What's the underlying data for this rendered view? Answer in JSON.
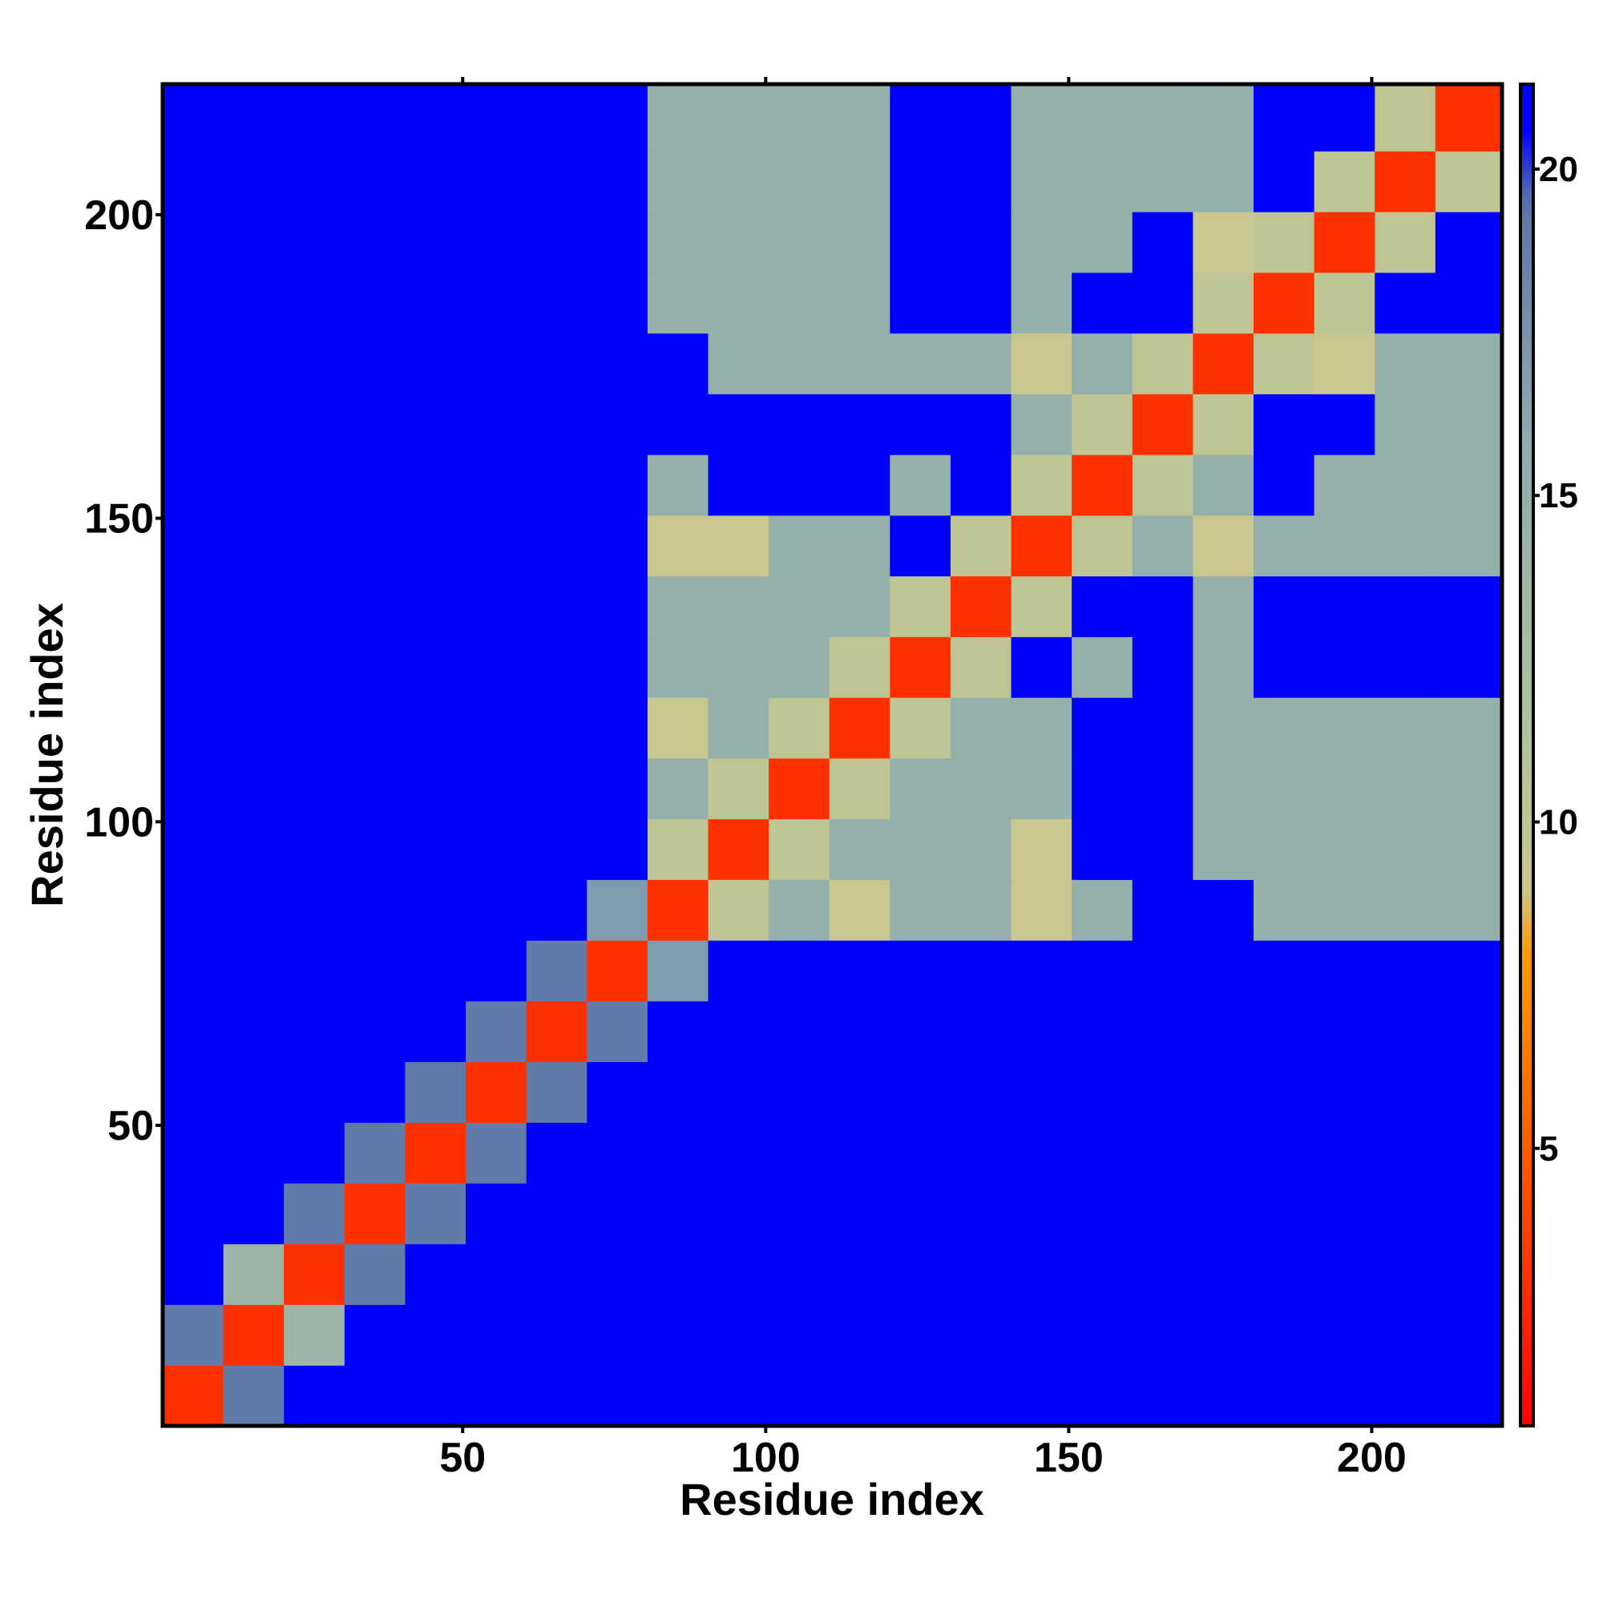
{
  "chart_data": {
    "type": "heatmap",
    "xlabel": "Residue index",
    "ylabel": "Residue index",
    "xbins": [
      0.5,
      10.5,
      20.5,
      30.5,
      40.5,
      50.5,
      60.5,
      70.5,
      80.5,
      90.5,
      100.5,
      110.5,
      120.5,
      130.5,
      140.5,
      150.5,
      160.5,
      170.5,
      180.5,
      190.5,
      200.5,
      210.5,
      221.5
    ],
    "ybins": [
      0.5,
      10.5,
      20.5,
      30.5,
      40.5,
      50.5,
      60.5,
      70.5,
      80.5,
      90.5,
      100.5,
      110.5,
      120.5,
      130.5,
      140.5,
      150.5,
      160.5,
      170.5,
      180.5,
      190.5,
      200.5,
      210.5,
      221.5
    ],
    "xlim": [
      0.5,
      221.5
    ],
    "ylim": [
      0.5,
      221.5
    ],
    "xticks": [
      50,
      100,
      150,
      200
    ],
    "yticks": [
      50,
      100,
      150,
      200
    ],
    "clim": [
      0.75,
      21.3
    ],
    "cticks": [
      5,
      10,
      15,
      20
    ],
    "colorscale": [
      [
        0.75,
        "#ff0000"
      ],
      [
        5,
        "#ff5a00"
      ],
      [
        8,
        "#ff9a00"
      ],
      [
        9,
        "#c9c78f"
      ],
      [
        12,
        "#a9c09c"
      ],
      [
        16,
        "#8eaab0"
      ],
      [
        19.5,
        "#5a74a8"
      ],
      [
        20.6,
        "#0000ff"
      ],
      [
        21.3,
        "#0000ff"
      ]
    ],
    "z": [
      [
        3,
        19,
        21,
        21,
        21,
        21,
        21,
        21,
        21,
        21,
        21,
        21,
        21,
        21,
        21,
        21,
        21,
        21,
        21,
        21,
        21,
        21
      ],
      [
        19,
        3,
        14,
        21,
        21,
        21,
        21,
        21,
        21,
        21,
        21,
        21,
        21,
        21,
        21,
        21,
        21,
        21,
        21,
        21,
        21,
        21
      ],
      [
        21,
        14,
        3,
        19,
        21,
        21,
        21,
        21,
        21,
        21,
        21,
        21,
        21,
        21,
        21,
        21,
        21,
        21,
        21,
        21,
        21,
        21
      ],
      [
        21,
        21,
        19,
        3,
        19,
        21,
        21,
        21,
        21,
        21,
        21,
        21,
        21,
        21,
        21,
        21,
        21,
        21,
        21,
        21,
        21,
        21
      ],
      [
        21,
        21,
        21,
        19,
        3,
        19,
        21,
        21,
        21,
        21,
        21,
        21,
        21,
        21,
        21,
        21,
        21,
        21,
        21,
        21,
        21,
        21
      ],
      [
        21,
        21,
        21,
        21,
        19,
        3,
        19,
        21,
        21,
        21,
        21,
        21,
        21,
        21,
        21,
        21,
        21,
        21,
        21,
        21,
        21,
        21
      ],
      [
        21,
        21,
        21,
        21,
        21,
        19,
        3,
        19,
        21,
        21,
        21,
        21,
        21,
        21,
        21,
        21,
        21,
        21,
        21,
        21,
        21,
        21
      ],
      [
        21,
        21,
        21,
        21,
        21,
        21,
        19,
        3,
        17,
        21,
        21,
        21,
        21,
        21,
        21,
        21,
        21,
        21,
        21,
        21,
        21,
        21
      ],
      [
        21,
        21,
        21,
        21,
        21,
        21,
        21,
        17,
        3,
        10,
        15,
        9,
        15,
        15,
        9,
        15,
        21,
        21,
        15,
        15,
        15,
        15
      ],
      [
        21,
        21,
        21,
        21,
        21,
        21,
        21,
        21,
        10,
        3,
        10,
        15,
        15,
        15,
        9,
        21,
        21,
        15,
        15,
        15,
        15,
        15
      ],
      [
        21,
        21,
        21,
        21,
        21,
        21,
        21,
        21,
        15,
        10,
        3,
        10,
        15,
        15,
        15,
        21,
        21,
        15,
        15,
        15,
        15,
        15
      ],
      [
        21,
        21,
        21,
        21,
        21,
        21,
        21,
        21,
        9,
        15,
        10,
        3,
        10,
        15,
        15,
        21,
        21,
        15,
        15,
        15,
        15,
        15
      ],
      [
        21,
        21,
        21,
        21,
        21,
        21,
        21,
        21,
        15,
        15,
        15,
        10,
        3,
        10,
        21,
        15,
        21,
        15,
        21,
        21,
        21,
        21
      ],
      [
        21,
        21,
        21,
        21,
        21,
        21,
        21,
        21,
        15,
        15,
        15,
        15,
        10,
        3,
        10,
        21,
        21,
        15,
        21,
        21,
        21,
        21
      ],
      [
        21,
        21,
        21,
        21,
        21,
        21,
        21,
        21,
        9,
        9,
        15,
        15,
        21,
        10,
        3,
        10,
        15,
        9,
        15,
        15,
        15,
        15
      ],
      [
        21,
        21,
        21,
        21,
        21,
        21,
        21,
        21,
        15,
        21,
        21,
        21,
        15,
        21,
        10,
        3,
        10,
        15,
        21,
        15,
        15,
        15
      ],
      [
        21,
        21,
        21,
        21,
        21,
        21,
        21,
        21,
        21,
        21,
        21,
        21,
        21,
        21,
        15,
        10,
        3,
        10,
        21,
        21,
        15,
        15
      ],
      [
        21,
        21,
        21,
        21,
        21,
        21,
        21,
        21,
        21,
        15,
        15,
        15,
        15,
        15,
        9,
        15,
        10,
        3,
        10,
        9,
        15,
        15
      ],
      [
        21,
        21,
        21,
        21,
        21,
        21,
        21,
        21,
        15,
        15,
        15,
        15,
        21,
        21,
        15,
        21,
        21,
        10,
        3,
        10,
        21,
        21
      ],
      [
        21,
        21,
        21,
        21,
        21,
        21,
        21,
        21,
        15,
        15,
        15,
        15,
        21,
        21,
        15,
        15,
        21,
        9,
        10,
        3,
        10,
        21
      ],
      [
        21,
        21,
        21,
        21,
        21,
        21,
        21,
        21,
        15,
        15,
        15,
        15,
        21,
        21,
        15,
        15,
        15,
        15,
        21,
        10,
        3,
        10
      ],
      [
        21,
        21,
        21,
        21,
        21,
        21,
        21,
        21,
        15,
        15,
        15,
        15,
        21,
        21,
        15,
        15,
        15,
        15,
        21,
        21,
        10,
        3
      ]
    ]
  }
}
